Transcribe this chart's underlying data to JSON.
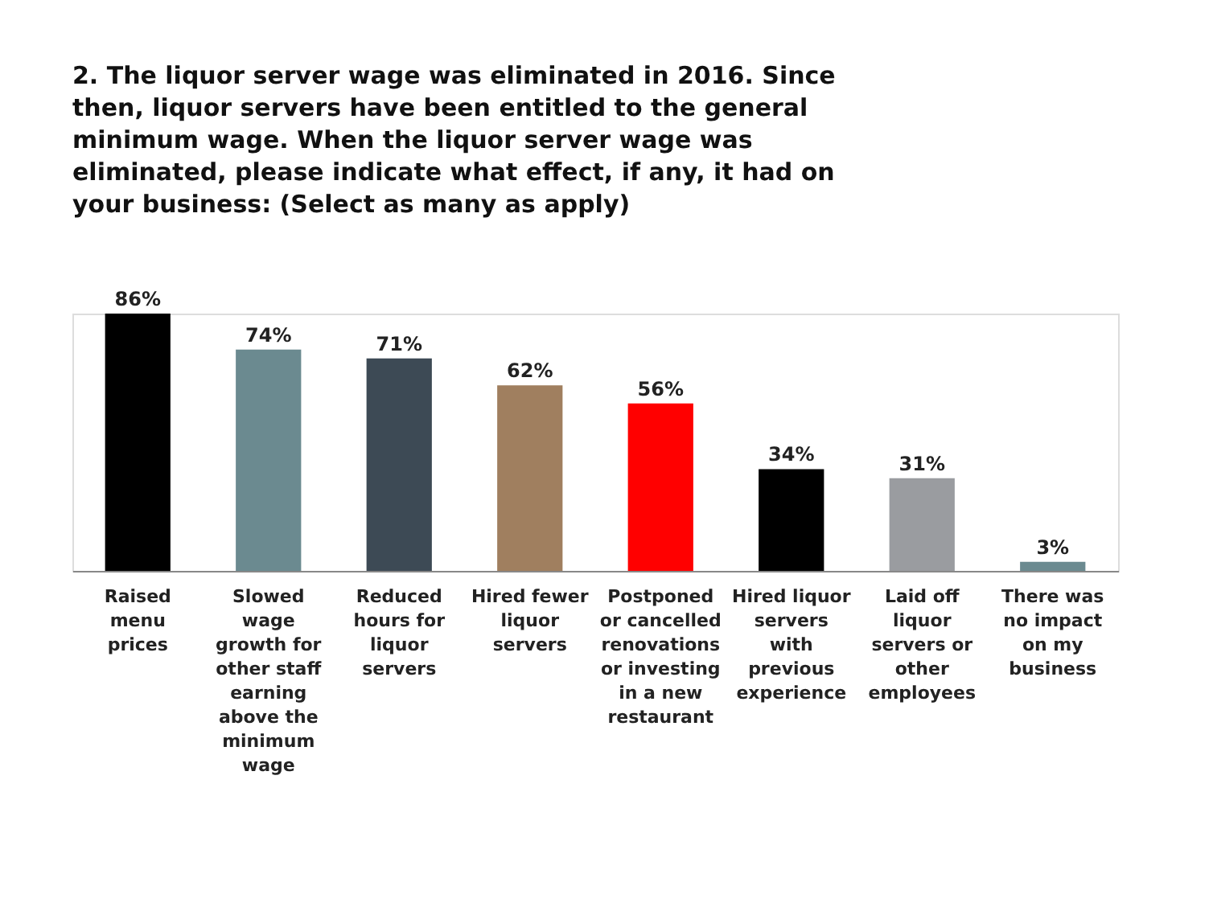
{
  "chart_data": {
    "type": "bar",
    "title": "2. The liquor server wage was eliminated in 2016. Since\nthen, liquor servers have been entitled to the general\nminimum wage. When the liquor server wage was\neliminated, please indicate what effect, if any, it had on\nyour business: (Select as many as apply)",
    "categories": [
      "Raised\nmenu\nprices",
      "Slowed\nwage\ngrowth for\nother staff\nearning\nabove the\nminimum\nwage",
      "Reduced\nhours for\nliquor\nservers",
      "Hired fewer\nliquor\nservers",
      "Postponed\nor cancelled\nrenovations\nor investing\nin a new\nrestaurant",
      "Hired liquor\nservers\nwith\nprevious\nexperience",
      "Laid off\nliquor\nservers or\nother\nemployees",
      "There was\nno impact\non my\nbusiness"
    ],
    "values": [
      86,
      74,
      71,
      62,
      56,
      34,
      31,
      3
    ],
    "colors": [
      "#000000",
      "#6b8a90",
      "#3d4a55",
      "#a07f5f",
      "#ff0000",
      "#000000",
      "#9a9ca0",
      "#6b8a90"
    ],
    "value_labels": [
      "86%",
      "74%",
      "71%",
      "62%",
      "56%",
      "34%",
      "31%",
      "3%"
    ],
    "grid": false
  }
}
